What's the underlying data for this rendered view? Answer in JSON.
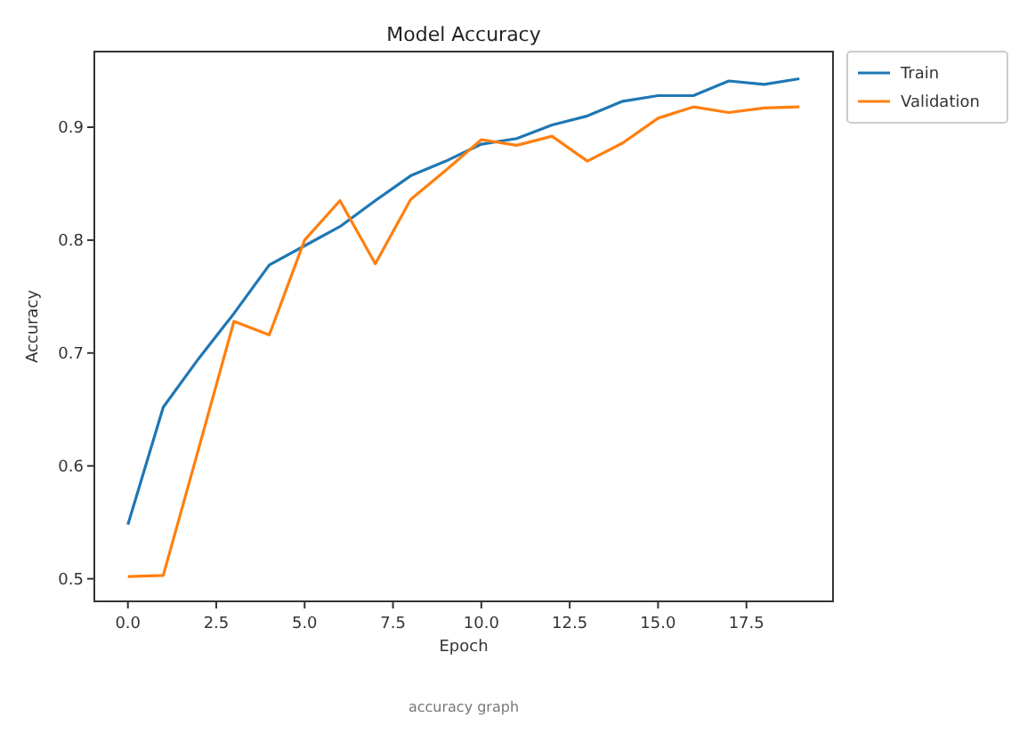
{
  "chart_data": {
    "type": "line",
    "title": "Model Accuracy",
    "xlabel": "Epoch",
    "ylabel": "Accuracy",
    "x": [
      0,
      1,
      2,
      3,
      4,
      5,
      6,
      7,
      8,
      9,
      10,
      11,
      12,
      13,
      14,
      15,
      16,
      17,
      18,
      19
    ],
    "series": [
      {
        "name": "Train",
        "color": "#1f77b4",
        "values": [
          0.548,
          0.652,
          0.695,
          0.735,
          0.778,
          0.795,
          0.812,
          0.835,
          0.857,
          0.87,
          0.885,
          0.89,
          0.902,
          0.91,
          0.923,
          0.928,
          0.928,
          0.941,
          0.938,
          0.943
        ]
      },
      {
        "name": "Validation",
        "color": "#ff7f0e",
        "values": [
          0.502,
          0.503,
          0.615,
          0.728,
          0.716,
          0.8,
          0.835,
          0.779,
          0.836,
          0.862,
          0.889,
          0.884,
          0.892,
          0.87,
          0.886,
          0.908,
          0.918,
          0.913,
          0.917,
          0.918
        ]
      }
    ],
    "xlim": [
      -0.95,
      19.95
    ],
    "xticks": [
      {
        "value": 0,
        "label": "0.0"
      },
      {
        "value": 2.5,
        "label": "2.5"
      },
      {
        "value": 5,
        "label": "5.0"
      },
      {
        "value": 7.5,
        "label": "7.5"
      },
      {
        "value": 10,
        "label": "10.0"
      },
      {
        "value": 12.5,
        "label": "12.5"
      },
      {
        "value": 15,
        "label": "15.0"
      },
      {
        "value": 17.5,
        "label": "17.5"
      }
    ],
    "ylim": [
      0.48,
      0.967
    ],
    "yticks": [
      0.5,
      0.6,
      0.7,
      0.8,
      0.9
    ],
    "legend": "top right",
    "grid": false,
    "marker": "none",
    "line_style": "solid",
    "annotations": [
      "accuracy graph"
    ]
  }
}
